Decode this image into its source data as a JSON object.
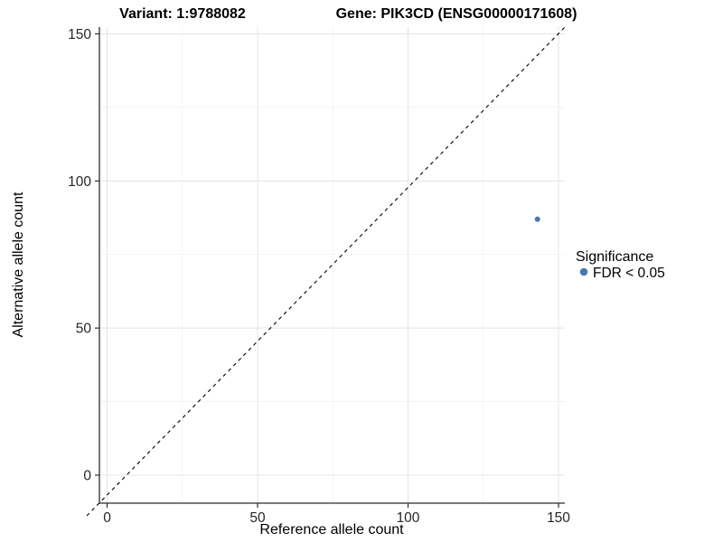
{
  "titles": {
    "variant": "Variant: 1:9788082",
    "gene": "Gene: PIK3CD (ENSG00000171608)"
  },
  "chart_data": {
    "type": "scatter",
    "title_left": "Variant: 1:9788082",
    "title_right": "Gene: PIK3CD (ENSG00000171608)",
    "xlabel": "Reference allele count",
    "ylabel": "Alternative allele count",
    "xlim": [
      -3,
      152
    ],
    "ylim": [
      -9,
      152
    ],
    "x_ticks": [
      0,
      50,
      100,
      150
    ],
    "y_ticks": [
      0,
      50,
      100,
      150
    ],
    "x_minor_ticks": [
      25,
      75,
      125
    ],
    "y_minor_ticks": [
      25,
      75,
      125
    ],
    "grid": true,
    "reference_line": {
      "kind": "y=x",
      "style": "dashed",
      "color": "#000000"
    },
    "series": [
      {
        "name": "FDR < 0.05",
        "color": "#4878ac",
        "points": [
          {
            "x": 143,
            "y": 87
          }
        ]
      }
    ],
    "legend": {
      "position": "right",
      "title": "Significance",
      "items": [
        {
          "label": "FDR < 0.05",
          "color": "#4878ac"
        }
      ]
    },
    "colors": {
      "point": "#4878ac",
      "major_grid": "#e4e4e4",
      "minor_grid": "#f1f1f1",
      "axis_line": "#2b2b2b"
    }
  }
}
